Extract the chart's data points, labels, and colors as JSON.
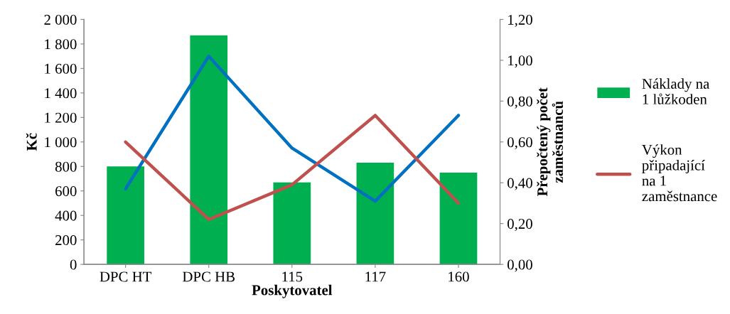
{
  "chart_data": {
    "type": "bar",
    "xlabel": "Poskytovatel",
    "ylabel": "Kč",
    "y2label": "Přepočtený počet\nzaměstnanců",
    "categories": [
      "DPC HT",
      "DPC HB",
      "115",
      "117",
      "160"
    ],
    "series": [
      {
        "name": "Náklady na\n1 lůžkoden",
        "color": "#00b050",
        "values": [
          800,
          1870,
          670,
          830,
          750
        ]
      },
      {
        "type": "line",
        "axis": "y2",
        "color": "#0070c0",
        "values": [
          0.37,
          1.02,
          0.57,
          0.31,
          0.73
        ]
      },
      {
        "name": "Výkon\npřipadající\nna 1\nzaměstnance",
        "type": "line",
        "axis": "y2",
        "color": "#c0504d",
        "values": [
          0.6,
          0.22,
          0.39,
          0.73,
          0.3
        ]
      }
    ],
    "ylim": [
      0,
      2000
    ],
    "yticks": [
      0,
      200,
      400,
      600,
      800,
      {
        "value": 1000,
        "label": "1 000"
      },
      {
        "value": 1200,
        "label": "1 200"
      },
      {
        "value": 1400,
        "label": "1 400"
      },
      {
        "value": 1600,
        "label": "1 600"
      },
      {
        "value": 1800,
        "label": "1 800"
      },
      {
        "value": 2000,
        "label": "2 000"
      }
    ],
    "y2lim": [
      0,
      1.2
    ],
    "y2ticks": [
      {
        "value": 0,
        "label": "0,00"
      },
      {
        "value": 0.2,
        "label": "0,20"
      },
      {
        "value": 0.4,
        "label": "0,40"
      },
      {
        "value": 0.6,
        "label": "0,60"
      },
      {
        "value": 0.8,
        "label": "0,80"
      },
      {
        "value": 1.0,
        "label": "1,00"
      },
      {
        "value": 1.2,
        "label": "1,20"
      }
    ],
    "grid": false,
    "legend": "right"
  }
}
